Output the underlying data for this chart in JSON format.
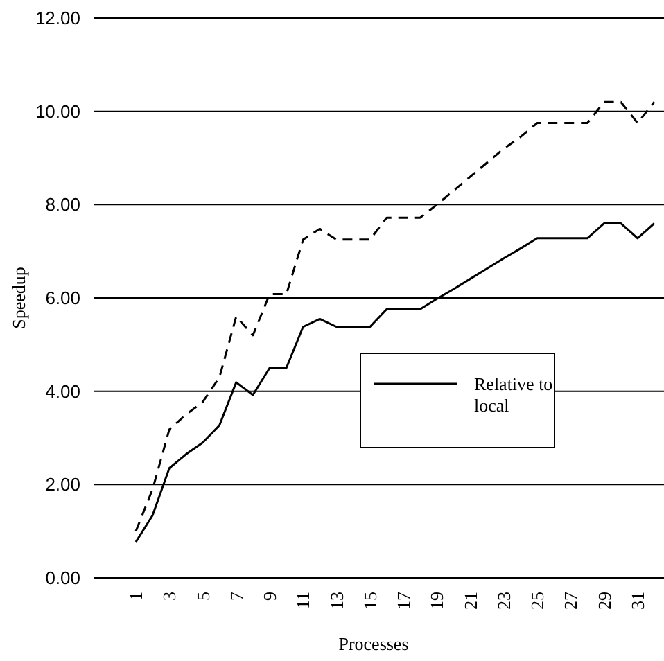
{
  "chart_data": {
    "type": "line",
    "xlabel": "Processes",
    "ylabel": "Speedup",
    "categories": [
      "1",
      null,
      "3",
      null,
      "5",
      null,
      "7",
      null,
      "9",
      null,
      "11",
      null,
      "13",
      null,
      "15",
      null,
      "17",
      null,
      "19",
      null,
      "21",
      null,
      "23",
      null,
      "25",
      null,
      "27",
      null,
      "29",
      null,
      "31",
      null
    ],
    "series": [
      {
        "name": "Relative to local",
        "color": "#000000",
        "line_style": "solid",
        "values": [
          0.77,
          1.34,
          2.35,
          2.65,
          2.9,
          3.27,
          4.19,
          3.92,
          4.5,
          4.5,
          5.38,
          5.55,
          5.38,
          5.38,
          5.38,
          5.76,
          5.76,
          5.76,
          5.98,
          6.19,
          6.41,
          6.63,
          6.85,
          7.06,
          7.28,
          7.28,
          7.28,
          7.28,
          7.6,
          7.6,
          7.28,
          7.6
        ]
      },
      {
        "color": "#000000",
        "line_style": "dashed",
        "values": [
          1.0,
          1.9,
          3.18,
          3.5,
          3.77,
          4.3,
          5.6,
          5.2,
          6.08,
          6.08,
          7.25,
          7.48,
          7.25,
          7.25,
          7.25,
          7.72,
          7.72,
          7.72,
          8.0,
          8.3,
          8.6,
          8.9,
          9.2,
          9.45,
          9.75,
          9.75,
          9.75,
          9.75,
          10.2,
          10.2,
          9.75,
          10.2
        ]
      }
    ],
    "ylim": [
      0,
      12
    ],
    "yticks": [
      {
        "value": 0,
        "label": "0.00"
      },
      {
        "value": 2,
        "label": "2.00"
      },
      {
        "value": 4,
        "label": "4.00"
      },
      {
        "value": 6,
        "label": "6.00"
      },
      {
        "value": 8,
        "label": "8.00"
      },
      {
        "value": 10,
        "label": "10.00"
      },
      {
        "value": 12,
        "label": "12.00"
      }
    ],
    "grid": "y",
    "legend": "right"
  }
}
